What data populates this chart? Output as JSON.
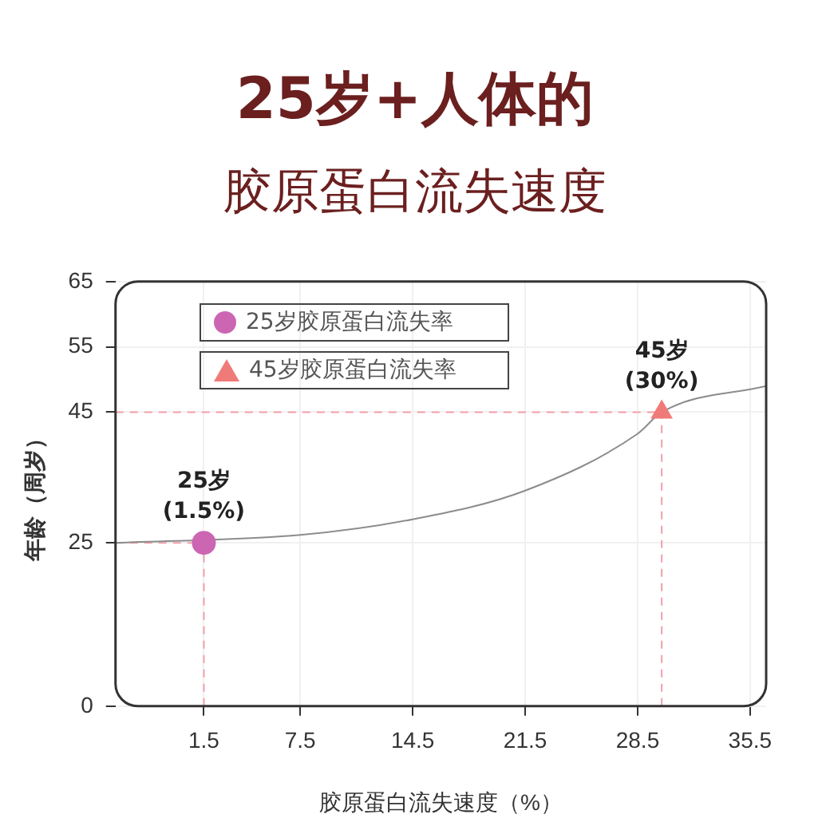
{
  "chart_data": {
    "type": "scatter",
    "title": "25岁+人体的",
    "subtitle": "胶原蛋白流失速度",
    "xlabel": "胶原蛋白流失速度（%）",
    "ylabel": "年龄（周岁）",
    "xlim": [
      -4,
      36.5
    ],
    "ylim": [
      0,
      65
    ],
    "xticks": [
      1.5,
      7.5,
      14.5,
      21.5,
      28.5,
      35.5
    ],
    "yticks": [
      0,
      25,
      45,
      55,
      65
    ],
    "grid": true,
    "legend": "top left",
    "series": [
      {
        "type": "line",
        "color": "#8c8c8c",
        "marker": "none",
        "x": [
          -4,
          7.5,
          14.5,
          21.5,
          28.5,
          30,
          36.5
        ],
        "values": [
          25,
          26.2,
          28.6,
          33,
          41.7,
          45,
          49
        ]
      },
      {
        "name": "25岁胶原蛋白流失率",
        "color": "#cc66b3",
        "marker": "circle",
        "x": [
          1.5
        ],
        "values": [
          25
        ]
      },
      {
        "name": "45岁胶原蛋白流失率",
        "color": "#ef7b78",
        "marker": "triangle",
        "x": [
          30
        ],
        "values": [
          45
        ]
      }
    ],
    "ref_lines": [
      {
        "axis": "y",
        "value": 25,
        "color": "#f2a0a8",
        "line_style": "dashed"
      },
      {
        "axis": "x",
        "value": 1.5,
        "color": "#f2a0a8",
        "line_style": "dashed"
      },
      {
        "axis": "y",
        "value": 45,
        "color": "#f2a0a8",
        "line_style": "dashed"
      },
      {
        "axis": "x",
        "value": 30,
        "color": "#f2a0a8",
        "line_style": "dashed"
      }
    ],
    "annotations": [
      {
        "text": "25岁\n(1.5%)",
        "x": 1.5,
        "y": 25
      },
      {
        "text": "45岁\n(30%)",
        "x": 30,
        "y": 45
      }
    ]
  }
}
